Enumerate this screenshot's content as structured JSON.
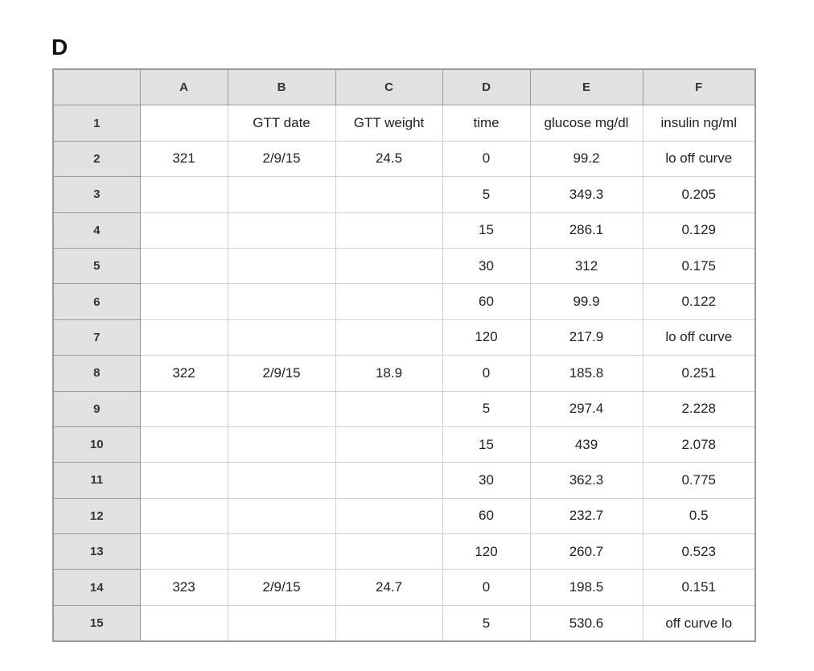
{
  "label": "D",
  "columns": [
    "",
    "A",
    "B",
    "C",
    "D",
    "E",
    "F"
  ],
  "rows": [
    {
      "num": "1",
      "cells": [
        "",
        "GTT date",
        "GTT weight",
        "time",
        "glucose mg/dl",
        "insulin ng/ml"
      ]
    },
    {
      "num": "2",
      "cells": [
        "321",
        "2/9/15",
        "24.5",
        "0",
        "99.2",
        "lo off curve"
      ]
    },
    {
      "num": "3",
      "cells": [
        "",
        "",
        "",
        "5",
        "349.3",
        "0.205"
      ]
    },
    {
      "num": "4",
      "cells": [
        "",
        "",
        "",
        "15",
        "286.1",
        "0.129"
      ]
    },
    {
      "num": "5",
      "cells": [
        "",
        "",
        "",
        "30",
        "312",
        "0.175"
      ]
    },
    {
      "num": "6",
      "cells": [
        "",
        "",
        "",
        "60",
        "99.9",
        "0.122"
      ]
    },
    {
      "num": "7",
      "cells": [
        "",
        "",
        "",
        "120",
        "217.9",
        "lo off curve"
      ]
    },
    {
      "num": "8",
      "cells": [
        "322",
        "2/9/15",
        "18.9",
        "0",
        "185.8",
        "0.251"
      ]
    },
    {
      "num": "9",
      "cells": [
        "",
        "",
        "",
        "5",
        "297.4",
        "2.228"
      ]
    },
    {
      "num": "10",
      "cells": [
        "",
        "",
        "",
        "15",
        "439",
        "2.078"
      ]
    },
    {
      "num": "11",
      "cells": [
        "",
        "",
        "",
        "30",
        "362.3",
        "0.775"
      ]
    },
    {
      "num": "12",
      "cells": [
        "",
        "",
        "",
        "60",
        "232.7",
        "0.5"
      ]
    },
    {
      "num": "13",
      "cells": [
        "",
        "",
        "",
        "120",
        "260.7",
        "0.523"
      ]
    },
    {
      "num": "14",
      "cells": [
        "323",
        "2/9/15",
        "24.7",
        "0",
        "198.5",
        "0.151"
      ]
    },
    {
      "num": "15",
      "cells": [
        "",
        "",
        "",
        "5",
        "530.6",
        "off curve lo"
      ]
    }
  ]
}
